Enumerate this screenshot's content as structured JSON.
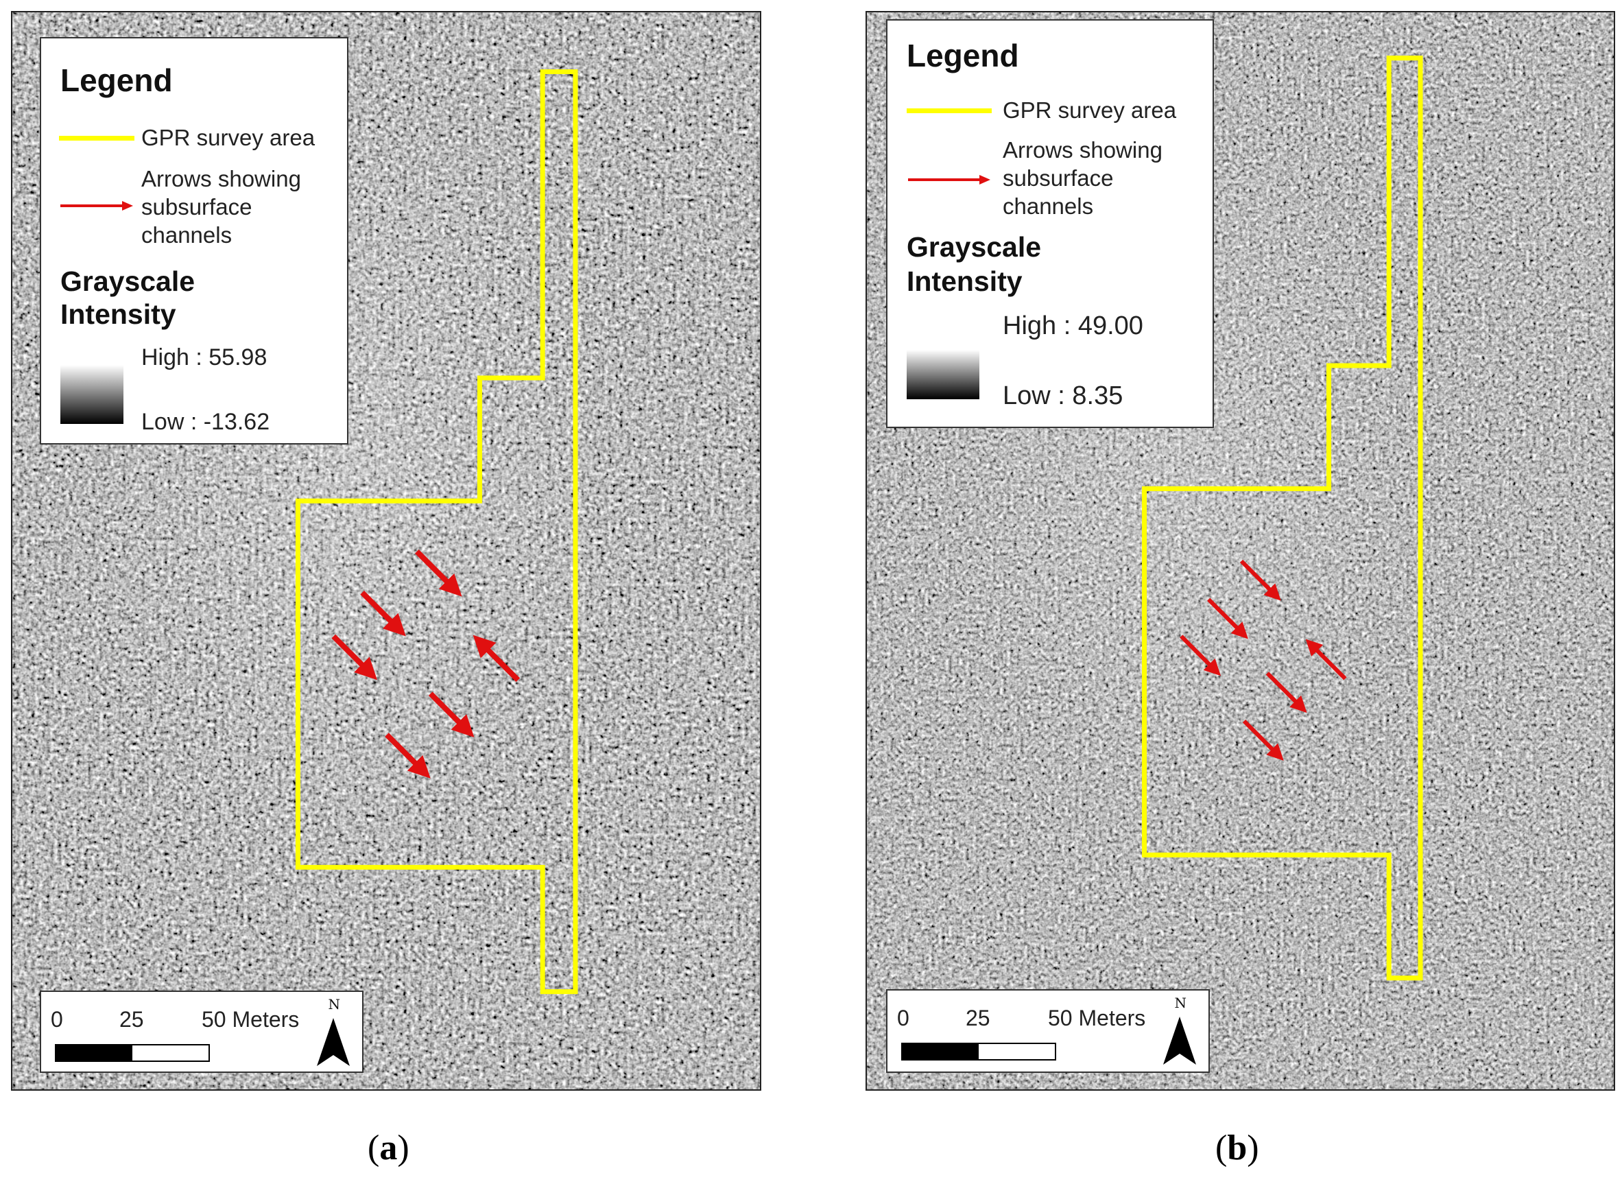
{
  "panels": [
    {
      "id": "a",
      "caption_letter": "a",
      "legend": {
        "title": "Legend",
        "survey_label": "GPR survey area",
        "arrows_label_lines": [
          "Arrows showing",
          "subsurface",
          "channels"
        ],
        "gray_title_lines": [
          "Grayscale",
          "Intensity"
        ],
        "high_label": "High : 55.98",
        "low_label": "Low : -13.62"
      },
      "scale": {
        "tick_0": "0",
        "tick_25": "25",
        "tick_50": "50 Meters",
        "north_letter": "N"
      }
    },
    {
      "id": "b",
      "caption_letter": "b",
      "legend": {
        "title": "Legend",
        "survey_label": "GPR survey area",
        "arrows_label_lines": [
          "Arrows showing",
          "subsurface",
          "channels"
        ],
        "gray_title_lines": [
          "Grayscale",
          "Intensity"
        ],
        "high_label": "High : 49.00",
        "low_label": "Low : 8.35"
      },
      "scale": {
        "tick_0": "0",
        "tick_25": "25",
        "tick_50": "50 Meters",
        "north_letter": "N"
      }
    }
  ],
  "colors": {
    "survey_outline": "#ffff00",
    "arrow": "#e01010"
  }
}
